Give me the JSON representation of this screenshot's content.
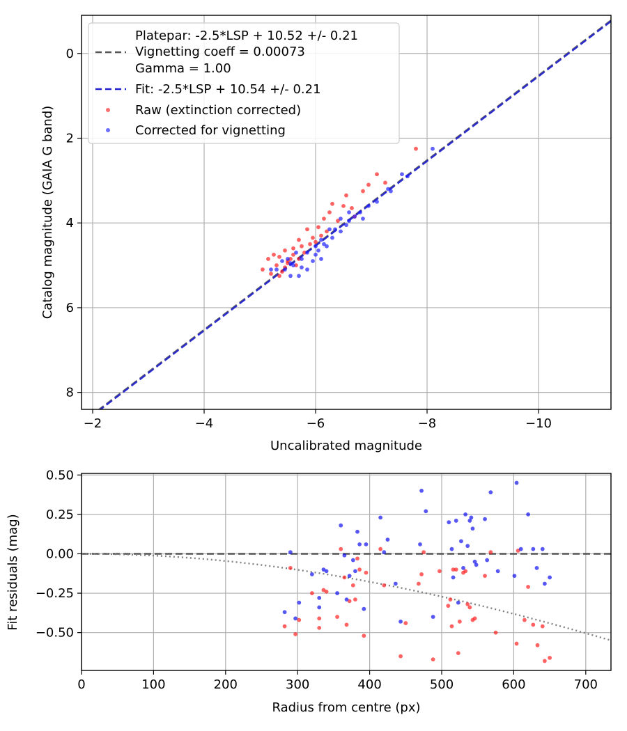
{
  "chart_data": [
    {
      "type": "scatter",
      "title": "",
      "xlabel": "Uncalibrated magnitude",
      "ylabel": "Catalog magnitude (GAIA G band)",
      "xlim": [
        -1.8,
        -11.3
      ],
      "ylim": [
        8.4,
        -0.9
      ],
      "xticks": [
        -2,
        -4,
        -6,
        -8,
        -10
      ],
      "xtick_labels": [
        "−2",
        "−4",
        "−6",
        "−8",
        "−10"
      ],
      "yticks": [
        0,
        2,
        4,
        6,
        8
      ],
      "ytick_labels": [
        "0",
        "2",
        "4",
        "6",
        "8"
      ],
      "grid": true,
      "legend_position": "top-left",
      "legend": {
        "platepar_line1": "Platepar: -2.5*LSP + 10.52 +/- 0.21",
        "platepar_line2": "Vignetting coeff = 0.00073",
        "platepar_line3": "Gamma = 1.00",
        "fit_label": "Fit: -2.5*LSP + 10.54 +/- 0.21",
        "raw_label": "Raw (extinction corrected)",
        "corrected_label": "Corrected for vignetting"
      },
      "lines": [
        {
          "name": "Platepar",
          "slope": 1.0,
          "intercept": 10.52,
          "color": "#555555",
          "style": "dashed"
        },
        {
          "name": "Fit",
          "slope": 1.0,
          "intercept": 10.54,
          "color": "#2020d0",
          "style": "dashed"
        }
      ],
      "series": [
        {
          "name": "Raw (extinction corrected)",
          "color": "#ff2020",
          "points": [
            [
              -7.8,
              2.25
            ],
            [
              -7.1,
              2.85
            ],
            [
              -7.25,
              3.05
            ],
            [
              -6.95,
              3.1
            ],
            [
              -6.85,
              3.25
            ],
            [
              -6.55,
              3.35
            ],
            [
              -6.5,
              3.6
            ],
            [
              -6.3,
              3.55
            ],
            [
              -6.25,
              3.75
            ],
            [
              -6.65,
              3.65
            ],
            [
              -6.15,
              3.9
            ],
            [
              -6.05,
              4.1
            ],
            [
              -5.85,
              4.15
            ],
            [
              -5.95,
              4.35
            ],
            [
              -5.7,
              4.4
            ],
            [
              -5.6,
              4.6
            ],
            [
              -5.45,
              4.65
            ],
            [
              -5.35,
              4.8
            ],
            [
              -5.25,
              4.75
            ],
            [
              -5.15,
              4.85
            ],
            [
              -5.05,
              5.1
            ],
            [
              -5.2,
              5.2
            ],
            [
              -5.35,
              5.25
            ],
            [
              -5.5,
              4.95
            ],
            [
              -5.65,
              5.0
            ],
            [
              -5.55,
              4.85
            ],
            [
              -5.75,
              4.55
            ],
            [
              -5.9,
              4.5
            ],
            [
              -6.0,
              4.45
            ],
            [
              -5.8,
              4.7
            ],
            [
              -5.45,
              5.05
            ],
            [
              -5.3,
              5.0
            ],
            [
              -5.6,
              4.75
            ],
            [
              -6.4,
              3.95
            ],
            [
              -6.7,
              3.85
            ],
            [
              -6.1,
              4.3
            ],
            [
              -5.4,
              5.15
            ],
            [
              -5.5,
              4.9
            ],
            [
              -5.7,
              4.85
            ],
            [
              -6.2,
              4.2
            ]
          ]
        },
        {
          "name": "Corrected for vignetting",
          "color": "#2020ff",
          "points": [
            [
              -8.1,
              2.25
            ],
            [
              -7.55,
              2.85
            ],
            [
              -7.65,
              2.9
            ],
            [
              -7.35,
              3.25
            ],
            [
              -7.3,
              3.2
            ],
            [
              -7.1,
              3.5
            ],
            [
              -6.95,
              3.6
            ],
            [
              -6.8,
              3.75
            ],
            [
              -6.85,
              3.9
            ],
            [
              -6.7,
              3.85
            ],
            [
              -6.6,
              3.95
            ],
            [
              -6.55,
              4.05
            ],
            [
              -6.45,
              3.9
            ],
            [
              -6.35,
              4.15
            ],
            [
              -6.25,
              4.15
            ],
            [
              -6.1,
              4.4
            ],
            [
              -6.05,
              4.65
            ],
            [
              -6.0,
              4.75
            ],
            [
              -5.95,
              4.9
            ],
            [
              -5.85,
              4.7
            ],
            [
              -5.75,
              4.85
            ],
            [
              -5.65,
              4.7
            ],
            [
              -5.55,
              4.95
            ],
            [
              -5.5,
              4.85
            ],
            [
              -5.45,
              5.1
            ],
            [
              -5.3,
              5.1
            ],
            [
              -5.4,
              4.9
            ],
            [
              -5.6,
              5.0
            ],
            [
              -5.7,
              5.25
            ],
            [
              -5.55,
              5.25
            ],
            [
              -6.0,
              4.55
            ],
            [
              -6.15,
              4.5
            ],
            [
              -6.3,
              4.35
            ],
            [
              -6.45,
              4.2
            ],
            [
              -6.2,
              4.55
            ],
            [
              -5.75,
              5.05
            ],
            [
              -5.85,
              5.1
            ],
            [
              -5.2,
              5.1
            ],
            [
              -6.1,
              4.85
            ],
            [
              -6.6,
              3.75
            ]
          ]
        }
      ]
    },
    {
      "type": "scatter",
      "title": "",
      "xlabel": "Radius from centre (px)",
      "ylabel": "Fit residuals (mag)",
      "xlim": [
        0,
        735
      ],
      "ylim": [
        -0.74,
        0.51
      ],
      "xticks": [
        0,
        100,
        200,
        300,
        400,
        500,
        600,
        700
      ],
      "xtick_labels": [
        "0",
        "100",
        "200",
        "300",
        "400",
        "500",
        "600",
        "700"
      ],
      "yticks": [
        0.5,
        0.25,
        0.0,
        -0.25,
        -0.5
      ],
      "ytick_labels": [
        "0.50",
        "0.25",
        "0.00",
        "−0.25",
        "−0.50"
      ],
      "grid": true,
      "zero_line": {
        "value": 0.0,
        "color": "#555555",
        "style": "dashed"
      },
      "vignetting_curve": {
        "name": "Vignetting model",
        "coeff": 0.00073,
        "color": "#808080",
        "style": "dotted"
      },
      "series": [
        {
          "name": "Raw (extinction corrected)",
          "color": "#ff2020",
          "points": [
            [
              282,
              -0.46
            ],
            [
              290,
              -0.09
            ],
            [
              297,
              -0.51
            ],
            [
              302,
              -0.42
            ],
            [
              320,
              -0.25
            ],
            [
              330,
              -0.47
            ],
            [
              330,
              -0.41
            ],
            [
              336,
              -0.23
            ],
            [
              340,
              -0.24
            ],
            [
              355,
              -0.4
            ],
            [
              360,
              0.03
            ],
            [
              365,
              -0.15
            ],
            [
              368,
              -0.45
            ],
            [
              372,
              -0.3
            ],
            [
              377,
              -0.2
            ],
            [
              380,
              -0.29
            ],
            [
              383,
              -0.03
            ],
            [
              386,
              -0.1
            ],
            [
              392,
              -0.52
            ],
            [
              395,
              -0.12
            ],
            [
              415,
              0.03
            ],
            [
              420,
              -0.2
            ],
            [
              443,
              -0.65
            ],
            [
              450,
              -0.44
            ],
            [
              468,
              -0.19
            ],
            [
              472,
              -0.13
            ],
            [
              475,
              0.01
            ],
            [
              488,
              -0.67
            ],
            [
              497,
              -0.11
            ],
            [
              509,
              -0.33
            ],
            [
              512,
              -0.29
            ],
            [
              514,
              -0.46
            ],
            [
              516,
              -0.1
            ],
            [
              520,
              -0.1
            ],
            [
              523,
              -0.63
            ],
            [
              525,
              -0.43
            ],
            [
              530,
              -0.12
            ],
            [
              533,
              -0.11
            ],
            [
              536,
              -0.32
            ],
            [
              539,
              -0.34
            ],
            [
              543,
              -0.42
            ],
            [
              546,
              -0.41
            ],
            [
              560,
              -0.14
            ],
            [
              568,
              0.01
            ],
            [
              575,
              -0.5
            ],
            [
              604,
              -0.57
            ],
            [
              606,
              0.02
            ],
            [
              615,
              -0.42
            ],
            [
              620,
              -0.21
            ],
            [
              627,
              -0.45
            ],
            [
              633,
              -0.58
            ],
            [
              640,
              -0.46
            ],
            [
              643,
              -0.68
            ],
            [
              650,
              -0.66
            ]
          ]
        },
        {
          "name": "Corrected for vignetting",
          "color": "#1010f0",
          "points": [
            [
              282,
              -0.37
            ],
            [
              290,
              0.01
            ],
            [
              297,
              -0.41
            ],
            [
              302,
              -0.31
            ],
            [
              320,
              -0.13
            ],
            [
              330,
              -0.34
            ],
            [
              330,
              -0.28
            ],
            [
              336,
              -0.1
            ],
            [
              340,
              -0.11
            ],
            [
              355,
              -0.25
            ],
            [
              360,
              0.18
            ],
            [
              365,
              -0.01
            ],
            [
              368,
              -0.29
            ],
            [
              372,
              -0.14
            ],
            [
              377,
              -0.04
            ],
            [
              380,
              -0.11
            ],
            [
              383,
              0.14
            ],
            [
              386,
              0.06
            ],
            [
              392,
              -0.35
            ],
            [
              395,
              0.06
            ],
            [
              415,
              0.23
            ],
            [
              420,
              0.01
            ],
            [
              425,
              0.09
            ],
            [
              436,
              -0.19
            ],
            [
              443,
              -0.43
            ],
            [
              470,
              0.06
            ],
            [
              472,
              0.4
            ],
            [
              478,
              0.27
            ],
            [
              488,
              -0.4
            ],
            [
              510,
              0.2
            ],
            [
              514,
              0.03
            ],
            [
              516,
              -0.15
            ],
            [
              520,
              0.21
            ],
            [
              523,
              -0.31
            ],
            [
              527,
              0.08
            ],
            [
              530,
              -0.09
            ],
            [
              533,
              0.25
            ],
            [
              536,
              0.05
            ],
            [
              539,
              0.21
            ],
            [
              541,
              0.23
            ],
            [
              543,
              0.16
            ],
            [
              546,
              -0.05
            ],
            [
              548,
              -0.07
            ],
            [
              560,
              0.22
            ],
            [
              563,
              -0.04
            ],
            [
              568,
              0.39
            ],
            [
              578,
              -0.11
            ],
            [
              601,
              -0.14
            ],
            [
              604,
              0.45
            ],
            [
              610,
              0.03
            ],
            [
              620,
              0.25
            ],
            [
              627,
              0.03
            ],
            [
              632,
              -0.09
            ],
            [
              640,
              0.03
            ],
            [
              643,
              -0.19
            ],
            [
              650,
              -0.15
            ]
          ]
        }
      ]
    }
  ]
}
